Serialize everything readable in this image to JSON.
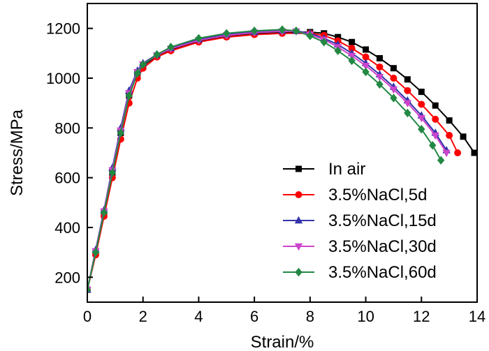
{
  "chart_data": {
    "type": "line",
    "title": "",
    "xlabel": "Strain/%",
    "ylabel": "Stress/MPa",
    "xlim": [
      0,
      14
    ],
    "ylim": [
      100,
      1300
    ],
    "xticks": [
      0,
      2,
      4,
      6,
      8,
      10,
      12,
      14
    ],
    "yticks": [
      200,
      400,
      600,
      800,
      1000,
      1200
    ],
    "grid": false,
    "legend_position": "bottom-right",
    "series": [
      {
        "name": "In air",
        "color": "#000000",
        "marker": "square",
        "points": [
          [
            0,
            150
          ],
          [
            0.3,
            300
          ],
          [
            0.6,
            460
          ],
          [
            0.9,
            620
          ],
          [
            1.2,
            780
          ],
          [
            1.5,
            930
          ],
          [
            1.8,
            1020
          ],
          [
            2,
            1050
          ],
          [
            2.5,
            1090
          ],
          [
            3,
            1115
          ],
          [
            4,
            1150
          ],
          [
            5,
            1170
          ],
          [
            6,
            1180
          ],
          [
            7,
            1185
          ],
          [
            8,
            1185
          ],
          [
            8.5,
            1180
          ],
          [
            9,
            1165
          ],
          [
            9.5,
            1145
          ],
          [
            10,
            1115
          ],
          [
            10.5,
            1080
          ],
          [
            11,
            1040
          ],
          [
            11.5,
            995
          ],
          [
            12,
            945
          ],
          [
            12.5,
            890
          ],
          [
            13,
            830
          ],
          [
            13.5,
            765
          ],
          [
            13.9,
            700
          ]
        ]
      },
      {
        "name": "3.5%NaCl,5d",
        "color": "#ff0000",
        "marker": "circle",
        "points": [
          [
            0,
            150
          ],
          [
            0.3,
            290
          ],
          [
            0.6,
            445
          ],
          [
            0.9,
            600
          ],
          [
            1.2,
            755
          ],
          [
            1.5,
            900
          ],
          [
            1.8,
            1000
          ],
          [
            2,
            1040
          ],
          [
            2.5,
            1085
          ],
          [
            3,
            1110
          ],
          [
            4,
            1145
          ],
          [
            5,
            1165
          ],
          [
            6,
            1175
          ],
          [
            7,
            1180
          ],
          [
            8,
            1180
          ],
          [
            8.5,
            1172
          ],
          [
            9,
            1150
          ],
          [
            9.5,
            1120
          ],
          [
            10,
            1085
          ],
          [
            10.5,
            1045
          ],
          [
            11,
            1000
          ],
          [
            11.5,
            950
          ],
          [
            12,
            895
          ],
          [
            12.5,
            835
          ],
          [
            13,
            770
          ],
          [
            13.3,
            700
          ]
        ]
      },
      {
        "name": "3.5%NaCl,15d",
        "color": "#3333aa",
        "marker": "triangle-up",
        "points": [
          [
            0,
            150
          ],
          [
            0.3,
            310
          ],
          [
            0.6,
            470
          ],
          [
            0.9,
            640
          ],
          [
            1.2,
            800
          ],
          [
            1.5,
            950
          ],
          [
            1.8,
            1030
          ],
          [
            2,
            1060
          ],
          [
            2.5,
            1095
          ],
          [
            3,
            1120
          ],
          [
            4,
            1155
          ],
          [
            5,
            1175
          ],
          [
            6,
            1185
          ],
          [
            7,
            1190
          ],
          [
            7.5,
            1190
          ],
          [
            8,
            1180
          ],
          [
            8.5,
            1160
          ],
          [
            9,
            1135
          ],
          [
            9.5,
            1100
          ],
          [
            10,
            1060
          ],
          [
            10.5,
            1015
          ],
          [
            11,
            965
          ],
          [
            11.5,
            910
          ],
          [
            12,
            850
          ],
          [
            12.5,
            780
          ],
          [
            12.9,
            710
          ]
        ]
      },
      {
        "name": "3.5%NaCl,30d",
        "color": "#cc44cc",
        "marker": "triangle-down",
        "points": [
          [
            0,
            150
          ],
          [
            0.3,
            305
          ],
          [
            0.6,
            465
          ],
          [
            0.9,
            630
          ],
          [
            1.2,
            790
          ],
          [
            1.5,
            940
          ],
          [
            1.8,
            1025
          ],
          [
            2,
            1055
          ],
          [
            2.5,
            1092
          ],
          [
            3,
            1118
          ],
          [
            4,
            1152
          ],
          [
            5,
            1172
          ],
          [
            6,
            1183
          ],
          [
            7,
            1188
          ],
          [
            7.5,
            1188
          ],
          [
            8,
            1175
          ],
          [
            8.5,
            1155
          ],
          [
            9,
            1125
          ],
          [
            9.5,
            1090
          ],
          [
            10,
            1050
          ],
          [
            10.5,
            1005
          ],
          [
            11,
            955
          ],
          [
            11.5,
            900
          ],
          [
            12,
            840
          ],
          [
            12.5,
            770
          ],
          [
            12.9,
            700
          ]
        ]
      },
      {
        "name": "3.5%NaCl,60d",
        "color": "#228844",
        "marker": "diamond",
        "points": [
          [
            0,
            150
          ],
          [
            0.3,
            300
          ],
          [
            0.6,
            460
          ],
          [
            0.9,
            620
          ],
          [
            1.2,
            780
          ],
          [
            1.5,
            930
          ],
          [
            1.8,
            1020
          ],
          [
            2,
            1055
          ],
          [
            2.5,
            1095
          ],
          [
            3,
            1125
          ],
          [
            4,
            1160
          ],
          [
            5,
            1180
          ],
          [
            6,
            1190
          ],
          [
            7,
            1195
          ],
          [
            7.5,
            1190
          ],
          [
            8,
            1170
          ],
          [
            8.5,
            1145
          ],
          [
            9,
            1110
          ],
          [
            9.5,
            1070
          ],
          [
            10,
            1025
          ],
          [
            10.5,
            975
          ],
          [
            11,
            920
          ],
          [
            11.5,
            860
          ],
          [
            12,
            795
          ],
          [
            12.4,
            730
          ],
          [
            12.7,
            670
          ]
        ]
      }
    ]
  }
}
